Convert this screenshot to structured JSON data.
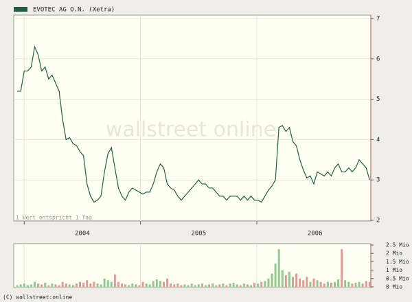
{
  "chart_data": [
    {
      "type": "line",
      "series": [
        {
          "name": "EVOTEC AG O.N. (Xetra)",
          "color": "#1f5e45",
          "values": [
            5.2,
            5.2,
            5.7,
            5.7,
            5.8,
            6.3,
            6.1,
            5.7,
            5.8,
            5.5,
            5.6,
            5.4,
            5.2,
            4.5,
            4.0,
            4.05,
            3.9,
            3.85,
            3.7,
            3.6,
            2.9,
            2.6,
            2.45,
            2.5,
            2.6,
            3.2,
            3.65,
            3.8,
            3.3,
            2.8,
            2.6,
            2.5,
            2.7,
            2.8,
            2.75,
            2.7,
            2.65,
            2.7,
            2.7,
            2.9,
            3.2,
            3.4,
            3.3,
            2.9,
            2.8,
            2.75,
            2.6,
            2.5,
            2.6,
            2.7,
            2.8,
            2.9,
            3.0,
            2.9,
            2.9,
            2.8,
            2.8,
            2.7,
            2.6,
            2.6,
            2.5,
            2.6,
            2.6,
            2.6,
            2.5,
            2.6,
            2.5,
            2.6,
            2.5,
            2.5,
            2.45,
            2.6,
            2.75,
            2.85,
            3.0,
            4.3,
            4.35,
            4.2,
            4.3,
            3.95,
            3.85,
            3.5,
            3.25,
            3.05,
            3.1,
            2.9,
            3.2,
            3.15,
            3.1,
            3.2,
            3.1,
            3.3,
            3.4,
            3.2,
            3.2,
            3.3,
            3.2,
            3.3,
            3.5,
            3.4,
            3.3,
            3.0
          ]
        }
      ],
      "x": [
        2003.94,
        2003.97,
        2004.0,
        2004.03,
        2004.06,
        2004.09,
        2004.12,
        2004.15,
        2004.18,
        2004.21,
        2004.24,
        2004.27,
        2004.3,
        2004.33,
        2004.36,
        2004.39,
        2004.42,
        2004.45,
        2004.48,
        2004.51,
        2004.54,
        2004.57,
        2004.6,
        2004.63,
        2004.66,
        2004.69,
        2004.72,
        2004.75,
        2004.78,
        2004.81,
        2004.84,
        2004.87,
        2004.9,
        2004.93,
        2004.96,
        2004.99,
        2005.02,
        2005.05,
        2005.08,
        2005.11,
        2005.14,
        2005.17,
        2005.2,
        2005.23,
        2005.26,
        2005.29,
        2005.32,
        2005.35,
        2005.38,
        2005.41,
        2005.44,
        2005.47,
        2005.5,
        2005.53,
        2005.56,
        2005.59,
        2005.62,
        2005.65,
        2005.68,
        2005.71,
        2005.74,
        2005.77,
        2005.8,
        2005.83,
        2005.86,
        2005.89,
        2005.92,
        2005.95,
        2005.98,
        2006.01,
        2006.04,
        2006.07,
        2006.1,
        2006.13,
        2006.16,
        2006.19,
        2006.22,
        2006.25,
        2006.28,
        2006.31,
        2006.34,
        2006.37,
        2006.4,
        2006.43,
        2006.46,
        2006.49,
        2006.52,
        2006.55,
        2006.58,
        2006.61,
        2006.64,
        2006.67,
        2006.7,
        2006.73,
        2006.76,
        2006.79,
        2006.82,
        2006.85,
        2006.88,
        2006.91,
        2006.94,
        2006.97
      ],
      "xlim": [
        2003.91,
        2006.98
      ],
      "xticks": [
        {
          "value": 2004,
          "label": "2004"
        },
        {
          "value": 2005,
          "label": "2005"
        },
        {
          "value": 2006,
          "label": "2006"
        }
      ],
      "ylim": [
        2,
        7
      ],
      "yticks": [
        2,
        3,
        4,
        5,
        6,
        7
      ],
      "annotation": "1 Wert entspricht 1 Tag",
      "watermark": "wallstreet online",
      "grid": true
    },
    {
      "type": "bar",
      "values": [
        0.1,
        0.15,
        0.2,
        0.1,
        0.15,
        0.3,
        0.2,
        0.15,
        0.25,
        0.1,
        0.2,
        0.15,
        0.1,
        0.3,
        0.2,
        0.15,
        0.1,
        0.2,
        0.3,
        0.25,
        0.4,
        0.2,
        0.3,
        0.2,
        0.15,
        0.5,
        0.4,
        0.3,
        0.75,
        0.3,
        0.2,
        0.15,
        0.1,
        0.2,
        0.15,
        0.1,
        0.3,
        0.2,
        0.15,
        0.35,
        0.45,
        0.35,
        0.3,
        0.5,
        0.2,
        0.15,
        0.2,
        0.1,
        0.15,
        0.1,
        0.2,
        0.1,
        0.15,
        0.2,
        0.1,
        0.15,
        0.2,
        0.1,
        0.15,
        0.2,
        0.1,
        0.2,
        0.25,
        0.15,
        0.1,
        0.2,
        0.15,
        0.1,
        0.25,
        0.2,
        0.3,
        0.35,
        0.5,
        0.8,
        1.4,
        2.25,
        1.0,
        0.7,
        0.9,
        0.6,
        0.8,
        0.5,
        0.4,
        0.6,
        0.3,
        0.5,
        0.4,
        0.3,
        0.2,
        0.3,
        0.25,
        0.3,
        0.45,
        2.25,
        0.4,
        0.3,
        0.2,
        0.25,
        0.3,
        0.2,
        0.35,
        0.3
      ],
      "up_color": "#8fc98f",
      "down_color": "#e09a9a",
      "ylim": [
        0,
        2.5
      ],
      "yticks": [
        {
          "value": 0,
          "label": "0 Mio"
        },
        {
          "value": 0.5,
          "label": "0.5 Mio"
        },
        {
          "value": 1,
          "label": "1 Mio"
        },
        {
          "value": 1.5,
          "label": "1.5 Mio"
        },
        {
          "value": 2,
          "label": "2 Mio"
        },
        {
          "value": 2.5,
          "label": "2.5 Mio"
        }
      ]
    }
  ],
  "footer": "(C) wallstreet:online"
}
